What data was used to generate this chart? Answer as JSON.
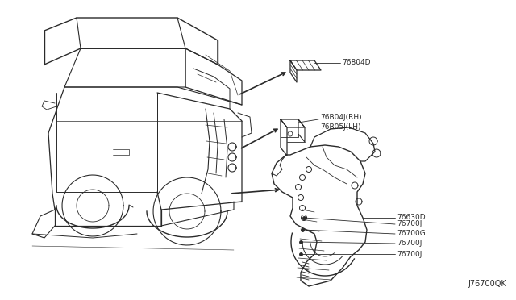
{
  "background_color": "#ffffff",
  "line_color": "#2a2a2a",
  "text_color": "#2a2a2a",
  "figure_code": "J76700QK",
  "font_size_labels": 6.5,
  "font_size_code": 7.0,
  "label_76804D": "76804D",
  "label_rh": "76B04J(RH)",
  "label_lh": "76B05J(LH)",
  "label_76630D": "76630D",
  "label_76700J": "76700J",
  "label_76700G": "76700G"
}
